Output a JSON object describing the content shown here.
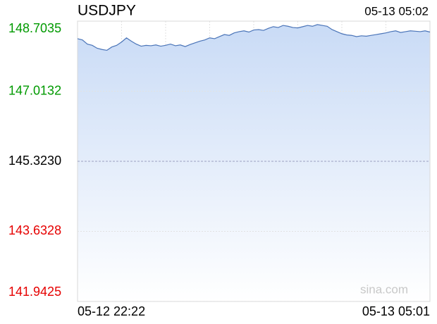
{
  "chart_data": {
    "type": "area",
    "title": "USDJPY",
    "timestamp": "05-13 05:02",
    "watermark": "sina.com",
    "categories": [
      "05-12 22:22",
      null,
      null,
      null,
      null,
      null,
      null,
      null,
      null,
      null,
      null,
      null,
      null,
      null,
      null,
      null,
      null,
      null,
      null,
      null,
      null,
      null,
      null,
      null,
      null,
      null,
      null,
      null,
      null,
      null,
      null,
      null,
      null,
      null,
      null,
      null,
      null,
      null,
      null,
      null,
      null,
      null,
      null,
      null,
      null,
      null,
      null,
      null,
      null,
      null,
      null,
      null,
      null,
      null,
      null,
      null,
      null,
      null,
      null,
      null,
      null,
      null,
      null,
      null,
      null,
      null,
      null,
      null,
      null,
      null,
      null,
      null,
      "05-13 05:01"
    ],
    "values": [
      148.28,
      148.25,
      148.15,
      148.12,
      148.05,
      148.02,
      148.0,
      148.08,
      148.12,
      148.2,
      148.3,
      148.22,
      148.15,
      148.1,
      148.12,
      148.11,
      148.13,
      148.1,
      148.12,
      148.15,
      148.11,
      148.13,
      148.09,
      148.14,
      148.18,
      148.22,
      148.25,
      148.3,
      148.28,
      148.33,
      148.38,
      148.36,
      148.42,
      148.45,
      148.47,
      148.44,
      148.49,
      148.5,
      148.48,
      148.53,
      148.57,
      148.55,
      148.6,
      148.58,
      148.55,
      148.54,
      148.57,
      148.6,
      148.58,
      148.62,
      148.6,
      148.58,
      148.5,
      148.45,
      148.4,
      148.37,
      148.36,
      148.33,
      148.35,
      148.34,
      148.36,
      148.38,
      148.4,
      148.42,
      148.45,
      148.47,
      148.43,
      148.45,
      148.47,
      148.46,
      148.45,
      148.47,
      148.44
    ],
    "color": "#4a74b8",
    "fill_color": "#c9dbf6",
    "ylim": [
      141.9425,
      148.7035
    ],
    "yticks": [
      141.9425,
      143.6328,
      {
        "value": 145.323,
        "label": "145.3230"
      },
      147.0132,
      148.7035
    ],
    "ytick_colors": [
      "#e60000",
      "#e60000",
      "#000000",
      "#009a00",
      "#009a00"
    ],
    "grid": true
  }
}
